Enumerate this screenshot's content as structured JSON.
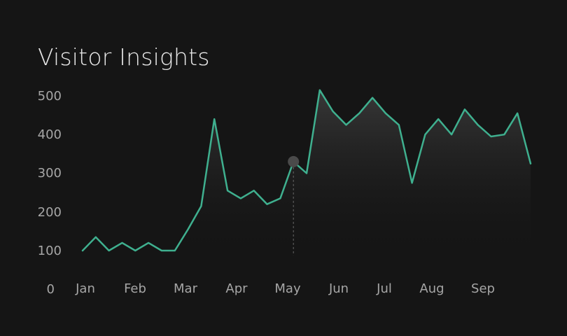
{
  "header": {
    "title": "Visitor Insights"
  },
  "chart_data": {
    "type": "area",
    "title": "Visitor Insights",
    "xlabel": "",
    "ylabel": "",
    "ylim": [
      0,
      500
    ],
    "y_ticks": [
      "500",
      "400",
      "300",
      "200",
      "100",
      "0"
    ],
    "x_ticks": [
      "Jan",
      "Feb",
      "Mar",
      "Apr",
      "May",
      "Jun",
      "Jul",
      "Aug",
      "Sep"
    ],
    "grid": false,
    "highlight_index": 16,
    "colors": {
      "line": "#3fb08f",
      "marker": "#4a4a4a",
      "guide": "#6a6a6a",
      "fill_top": "#3a3a3a"
    },
    "series": [
      {
        "values": [
          100,
          135,
          100,
          120,
          100,
          120,
          100,
          100,
          155,
          215,
          440,
          255,
          235,
          255,
          220,
          235,
          330,
          300,
          515,
          460,
          425,
          455,
          495,
          455,
          425,
          275,
          400,
          440,
          400,
          465,
          425,
          395,
          400,
          455,
          325
        ]
      }
    ]
  }
}
